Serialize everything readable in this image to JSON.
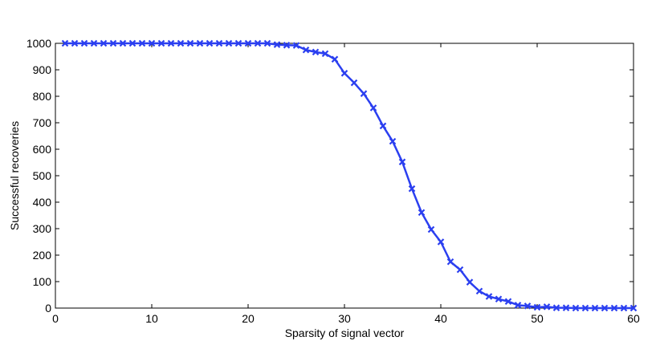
{
  "chart_data": {
    "type": "line",
    "title": "",
    "xlabel": "Sparsity of signal vector",
    "ylabel": "Successful recoveries",
    "xlim": [
      0,
      60
    ],
    "ylim": [
      0,
      1000
    ],
    "xticks": [
      0,
      10,
      20,
      30,
      40,
      50,
      60
    ],
    "yticks": [
      0,
      100,
      200,
      300,
      400,
      500,
      600,
      700,
      800,
      900,
      1000
    ],
    "grid": false,
    "legend": "none",
    "series": [
      {
        "color": "#2b3ff0",
        "marker": "x",
        "x": [
          1,
          2,
          3,
          4,
          5,
          6,
          7,
          8,
          9,
          10,
          11,
          12,
          13,
          14,
          15,
          16,
          17,
          18,
          19,
          20,
          21,
          22,
          23,
          24,
          25,
          26,
          27,
          28,
          29,
          30,
          31,
          32,
          33,
          34,
          35,
          36,
          37,
          38,
          39,
          40,
          41,
          42,
          43,
          44,
          45,
          46,
          47,
          48,
          49,
          50,
          51,
          52,
          53,
          54,
          55,
          56,
          57,
          58,
          59,
          60
        ],
        "values": [
          1000,
          1000,
          1000,
          1000,
          1000,
          1000,
          1000,
          1000,
          1000,
          1000,
          1000,
          1000,
          1000,
          1000,
          1000,
          1000,
          1000,
          1000,
          1000,
          1000,
          1000,
          1000,
          995,
          993,
          992,
          975,
          967,
          961,
          940,
          887,
          851,
          810,
          756,
          688,
          630,
          552,
          451,
          361,
          297,
          250,
          175,
          145,
          98,
          64,
          44,
          34,
          25,
          11,
          8,
          3,
          5,
          1,
          1,
          0,
          0,
          0,
          0,
          0,
          0,
          0
        ]
      }
    ]
  }
}
